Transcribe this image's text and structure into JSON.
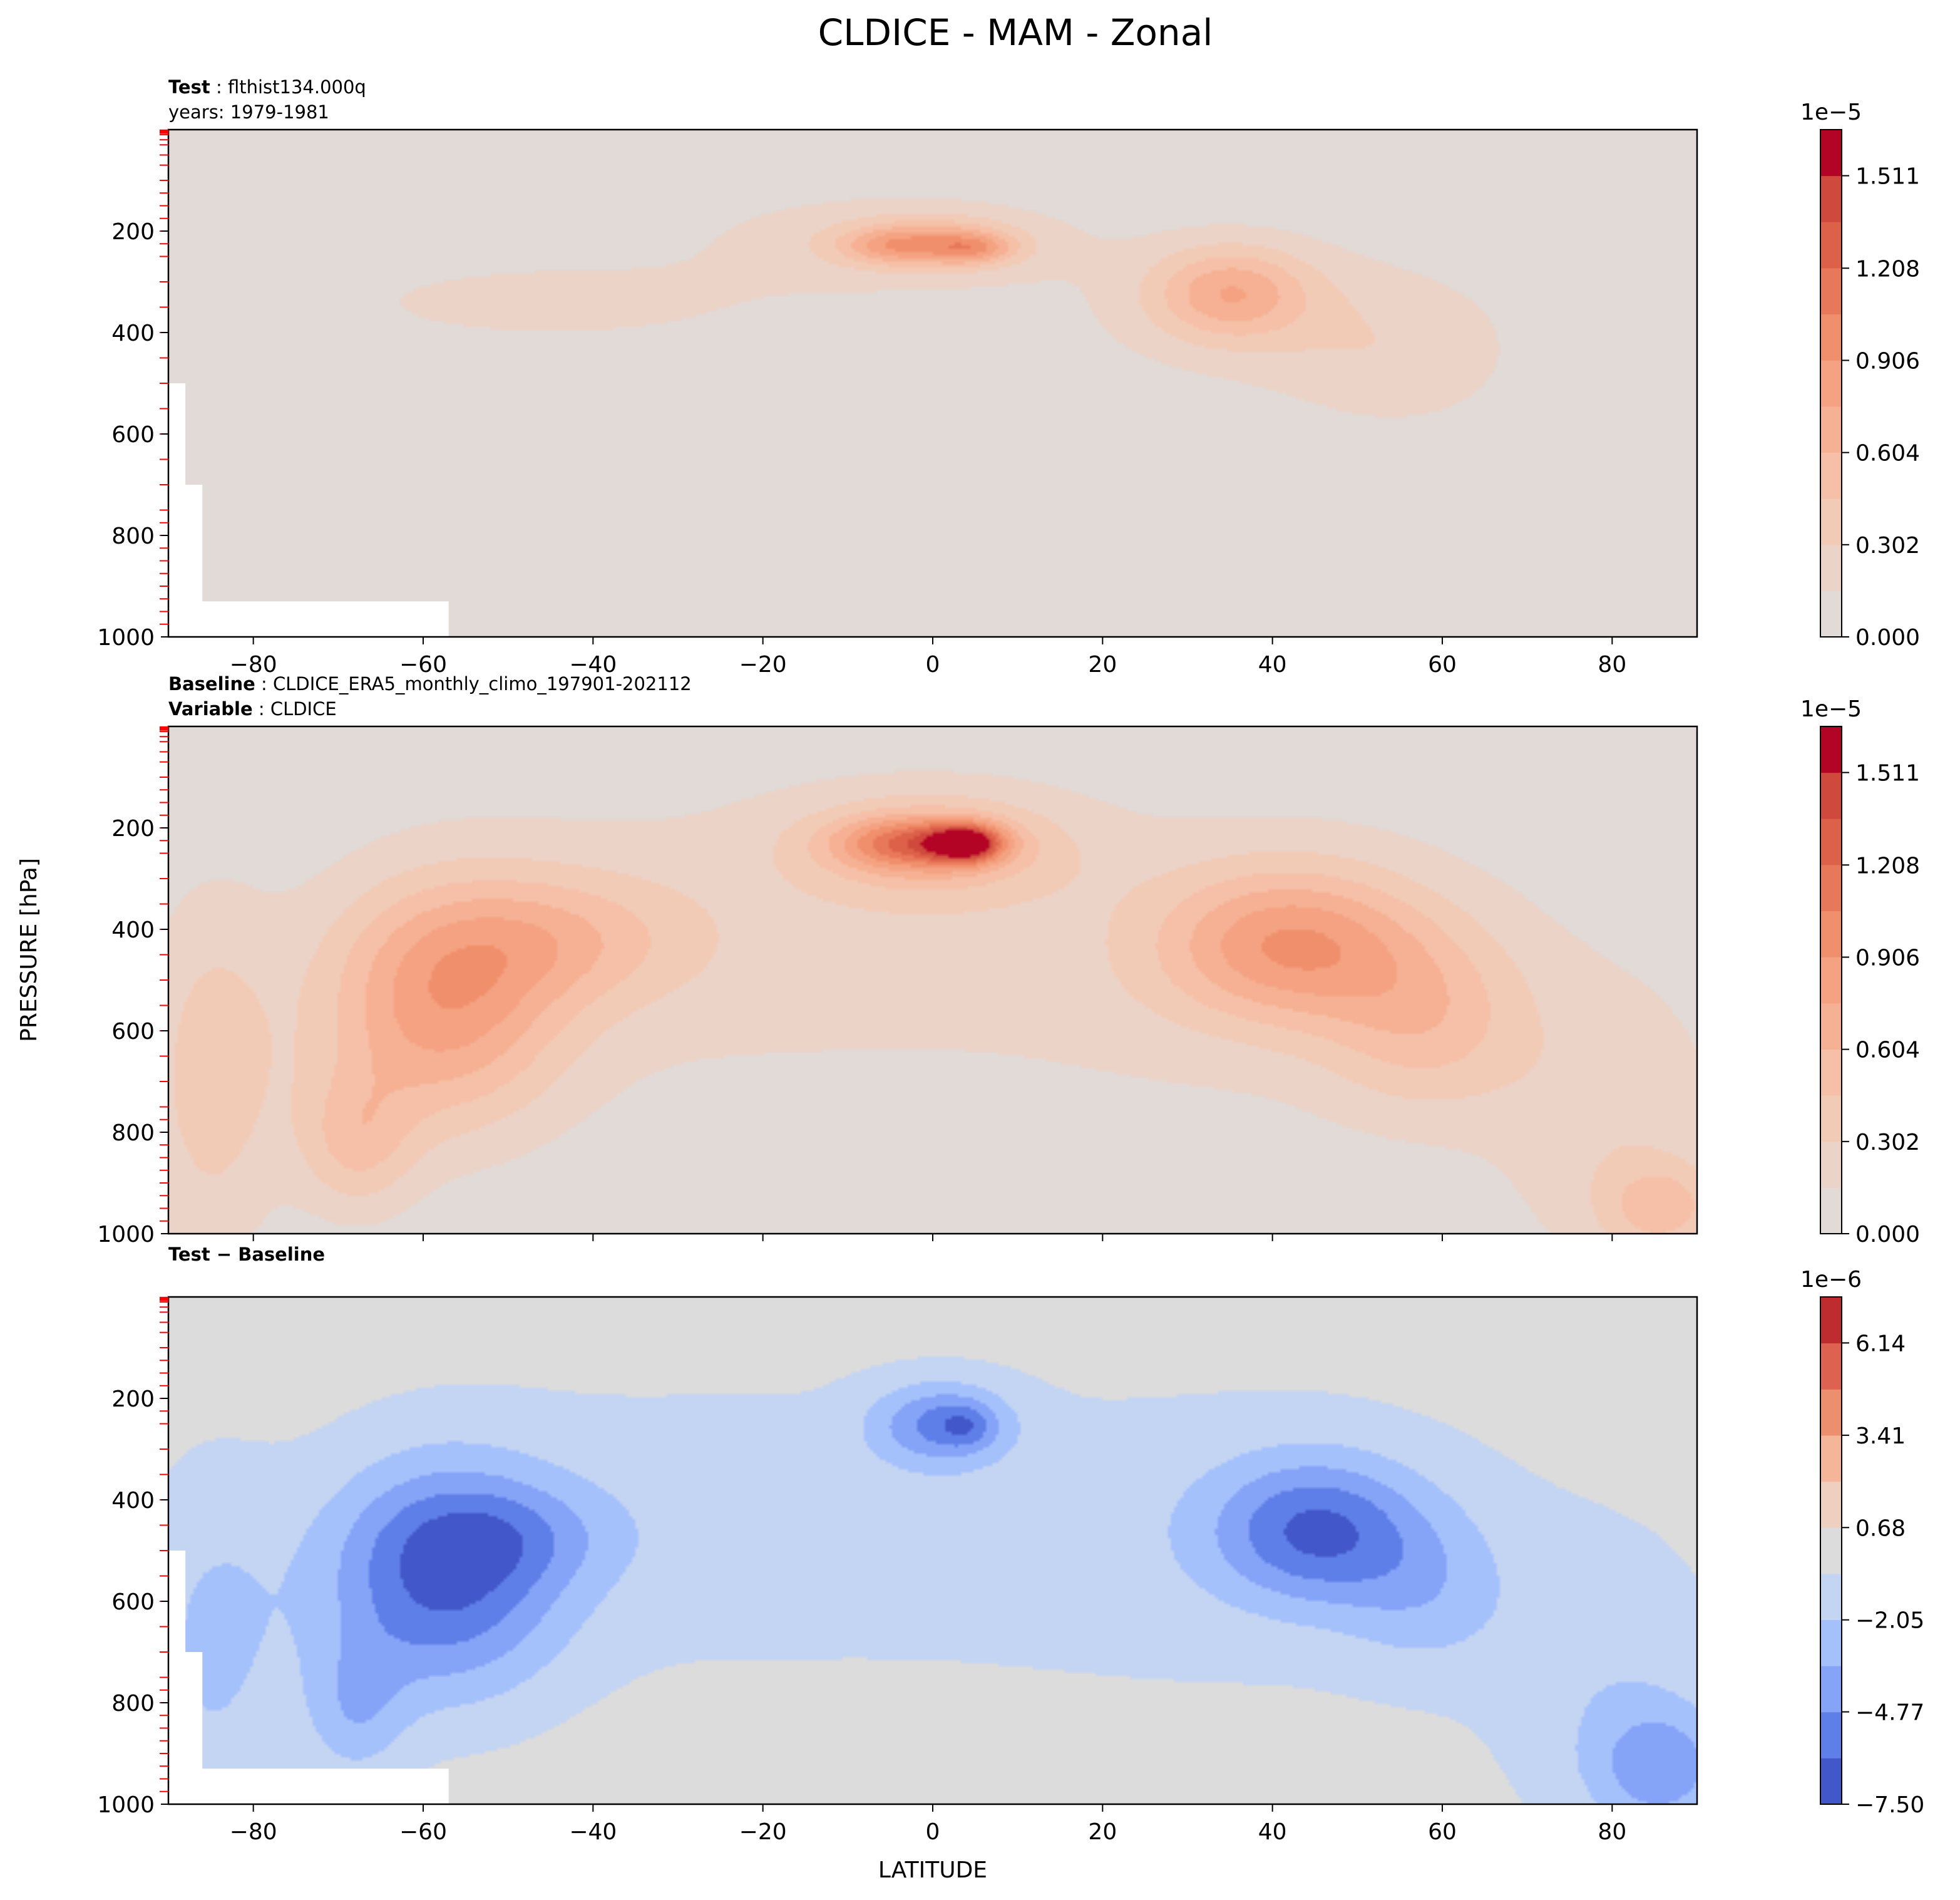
{
  "figure": {
    "title": "CLDICE - MAM - Zonal",
    "ylabel": "PRESSURE [hPa]",
    "xlabel": "LATITUDE"
  },
  "chart_data": [
    {
      "type": "heatmap",
      "panel": "test",
      "header": [
        {
          "bold": "Test",
          "sep": " : ",
          "text": "flthist134.000q"
        },
        {
          "bold": "",
          "sep": "",
          "text": "years: 1979-1981"
        }
      ],
      "xlim": [
        -90,
        90
      ],
      "ylim": [
        1000,
        0
      ],
      "x_ticks": [
        "−80",
        "−60",
        "−40",
        "−20",
        "0",
        "20",
        "40",
        "60",
        "80"
      ],
      "x_tick_values": [
        -80,
        -60,
        -40,
        -20,
        0,
        20,
        40,
        60,
        80
      ],
      "y_ticks": [
        "200",
        "400",
        "600",
        "800",
        "1000"
      ],
      "y_tick_values": [
        200,
        400,
        600,
        800,
        1000
      ],
      "colorbar": {
        "multiplier": "1e−5",
        "tick_labels": [
          "0.000",
          "0.302",
          "0.604",
          "0.906",
          "1.208",
          "1.511"
        ],
        "tick_values": [
          0.0,
          0.302,
          0.604,
          0.906,
          1.208,
          1.511
        ],
        "levels": [
          0.0,
          0.151,
          0.302,
          0.453,
          0.604,
          0.755,
          0.906,
          1.057,
          1.208,
          1.359,
          1.511,
          1.662
        ],
        "colors": [
          "#e1dad6",
          "#ecd3c7",
          "#f2cbb7",
          "#f5c0a7",
          "#f6b093",
          "#f4a281",
          "#f08f6c",
          "#e8785a",
          "#dd6049",
          "#cf4a3d",
          "#b40426"
        ]
      },
      "fields": [
        {
          "lat": 0,
          "p": 225,
          "lat_r": 9,
          "p_r": 45,
          "amp": 0.6
        },
        {
          "lat": 5,
          "p": 235,
          "lat_r": 4.5,
          "p_r": 28,
          "amp": 0.35
        },
        {
          "lat": -6,
          "p": 230,
          "lat_r": 5,
          "p_r": 30,
          "amp": 0.22
        },
        {
          "lat": -5,
          "p": 220,
          "lat_r": 22,
          "p_r": 95,
          "amp": 0.25
        },
        {
          "lat": 35,
          "p": 320,
          "lat_r": 9,
          "p_r": 90,
          "amp": 0.55
        },
        {
          "lat": 40,
          "p": 360,
          "lat_r": 24,
          "p_r": 150,
          "amp": 0.2
        },
        {
          "lat": -45,
          "p": 340,
          "lat_r": 28,
          "p_r": 90,
          "amp": 0.18
        },
        {
          "lat": 55,
          "p": 470,
          "lat_r": 14,
          "p_r": 140,
          "amp": 0.16
        }
      ],
      "missing": [
        {
          "lat0": -90,
          "lat1": -88,
          "p0": 500,
          "p1": 1000
        },
        {
          "lat0": -90,
          "lat1": -86,
          "p0": 700,
          "p1": 1000
        },
        {
          "lat0": -90,
          "lat1": -57,
          "p0": 930,
          "p1": 1000
        }
      ]
    },
    {
      "type": "heatmap",
      "panel": "baseline",
      "header": [
        {
          "bold": "Baseline",
          "sep": " : ",
          "text": "CLDICE_ERA5_monthly_climo_197901-202112"
        },
        {
          "bold": "Variable",
          "sep": " : ",
          "text": "CLDICE"
        }
      ],
      "xlim": [
        -90,
        90
      ],
      "ylim": [
        1000,
        0
      ],
      "x_ticks": [],
      "x_tick_values": [
        -80,
        -60,
        -40,
        -20,
        0,
        20,
        40,
        60,
        80
      ],
      "y_ticks": [
        "200",
        "400",
        "600",
        "800",
        "1000"
      ],
      "y_tick_values": [
        200,
        400,
        600,
        800,
        1000
      ],
      "colorbar": {
        "multiplier": "1e−5",
        "tick_labels": [
          "0.000",
          "0.302",
          "0.604",
          "0.906",
          "1.208",
          "1.511"
        ],
        "tick_values": [
          0.0,
          0.302,
          0.604,
          0.906,
          1.208,
          1.511
        ],
        "levels": [
          0.0,
          0.151,
          0.302,
          0.453,
          0.604,
          0.755,
          0.906,
          1.057,
          1.208,
          1.359,
          1.511,
          1.662
        ],
        "colors": [
          "#e1dad6",
          "#ecd3c7",
          "#f2cbb7",
          "#f5c0a7",
          "#f6b093",
          "#f4a281",
          "#f08f6c",
          "#e8785a",
          "#dd6049",
          "#cf4a3d",
          "#b40426"
        ]
      },
      "fields": [
        {
          "lat": 4,
          "p": 230,
          "lat_r": 4,
          "p_r": 35,
          "amp": 1.05
        },
        {
          "lat": -2,
          "p": 230,
          "lat_r": 9,
          "p_r": 50,
          "amp": 0.75
        },
        {
          "lat": 0,
          "p": 240,
          "lat_r": 16,
          "p_r": 110,
          "amp": 0.45
        },
        {
          "lat": -58,
          "p": 560,
          "lat_r": 14,
          "p_r": 230,
          "amp": 0.72
        },
        {
          "lat": -45,
          "p": 420,
          "lat_r": 16,
          "p_r": 130,
          "amp": 0.38
        },
        {
          "lat": -68,
          "p": 820,
          "lat_r": 7,
          "p_r": 140,
          "amp": 0.4
        },
        {
          "lat": -85,
          "p": 700,
          "lat_r": 8,
          "p_r": 350,
          "amp": 0.35
        },
        {
          "lat": 42,
          "p": 430,
          "lat_r": 15,
          "p_r": 150,
          "amp": 0.72
        },
        {
          "lat": 58,
          "p": 580,
          "lat_r": 12,
          "p_r": 180,
          "amp": 0.4
        },
        {
          "lat": -30,
          "p": 420,
          "lat_r": 38,
          "p_r": 330,
          "amp": 0.17
        },
        {
          "lat": 35,
          "p": 470,
          "lat_r": 40,
          "p_r": 330,
          "amp": 0.17
        },
        {
          "lat": 86,
          "p": 950,
          "lat_r": 7,
          "p_r": 90,
          "amp": 0.4
        },
        {
          "lat": 80,
          "p": 800,
          "lat_r": 14,
          "p_r": 300,
          "amp": 0.22
        }
      ],
      "missing": []
    },
    {
      "type": "heatmap",
      "panel": "difference",
      "header": [
        {
          "bold": "Test − Baseline",
          "sep": "",
          "text": ""
        }
      ],
      "xlim": [
        -90,
        90
      ],
      "ylim": [
        1000,
        0
      ],
      "x_ticks": [
        "−80",
        "−60",
        "−40",
        "−20",
        "0",
        "20",
        "40",
        "60",
        "80"
      ],
      "x_tick_values": [
        -80,
        -60,
        -40,
        -20,
        0,
        20,
        40,
        60,
        80
      ],
      "y_ticks": [
        "200",
        "400",
        "600",
        "800",
        "1000"
      ],
      "y_tick_values": [
        200,
        400,
        600,
        800,
        1000
      ],
      "colorbar": {
        "multiplier": "1e−6",
        "tick_labels": [
          "−7.50",
          "−4.77",
          "−2.05",
          "0.68",
          "3.41",
          "6.14"
        ],
        "tick_values": [
          -7.5,
          -4.77,
          -2.05,
          0.68,
          3.41,
          6.14
        ],
        "levels": [
          -7.5,
          -6.14,
          -4.77,
          -3.41,
          -2.05,
          -0.68,
          0.68,
          2.05,
          3.41,
          4.77,
          6.14,
          7.5
        ],
        "colors": [
          "#4257c9",
          "#5f7fe8",
          "#85a3f7",
          "#a5c1fc",
          "#c4d5f3",
          "#dcdcdc",
          "#efcfbf",
          "#f4b599",
          "#ec8f6e",
          "#dd6350",
          "#be2c2f"
        ]
      },
      "fields": [
        {
          "lat": -58,
          "p": 560,
          "lat_r": 14,
          "p_r": 230,
          "amp": -5.8
        },
        {
          "lat": -50,
          "p": 470,
          "lat_r": 12,
          "p_r": 100,
          "amp": -2.0
        },
        {
          "lat": -68,
          "p": 820,
          "lat_r": 6,
          "p_r": 140,
          "amp": -2.5
        },
        {
          "lat": -85,
          "p": 700,
          "lat_r": 9,
          "p_r": 350,
          "amp": -2.2
        },
        {
          "lat": 1,
          "p": 250,
          "lat_r": 8,
          "p_r": 80,
          "amp": -4.5
        },
        {
          "lat": 4,
          "p": 255,
          "lat_r": 3,
          "p_r": 40,
          "amp": -1.8
        },
        {
          "lat": 45,
          "p": 460,
          "lat_r": 12,
          "p_r": 140,
          "amp": -5.2
        },
        {
          "lat": 58,
          "p": 580,
          "lat_r": 10,
          "p_r": 160,
          "amp": -2.0
        },
        {
          "lat": -30,
          "p": 450,
          "lat_r": 38,
          "p_r": 300,
          "amp": -1.3
        },
        {
          "lat": 35,
          "p": 480,
          "lat_r": 40,
          "p_r": 330,
          "amp": -1.3
        },
        {
          "lat": 86,
          "p": 930,
          "lat_r": 8,
          "p_r": 120,
          "amp": -3.5
        },
        {
          "lat": 80,
          "p": 800,
          "lat_r": 14,
          "p_r": 300,
          "amp": -1.6
        }
      ],
      "missing": [
        {
          "lat0": -90,
          "lat1": -88,
          "p0": 500,
          "p1": 1000
        },
        {
          "lat0": -90,
          "lat1": -86,
          "p0": 700,
          "p1": 1000
        },
        {
          "lat0": -90,
          "lat1": -57,
          "p0": 930,
          "p1": 1000
        }
      ]
    }
  ]
}
